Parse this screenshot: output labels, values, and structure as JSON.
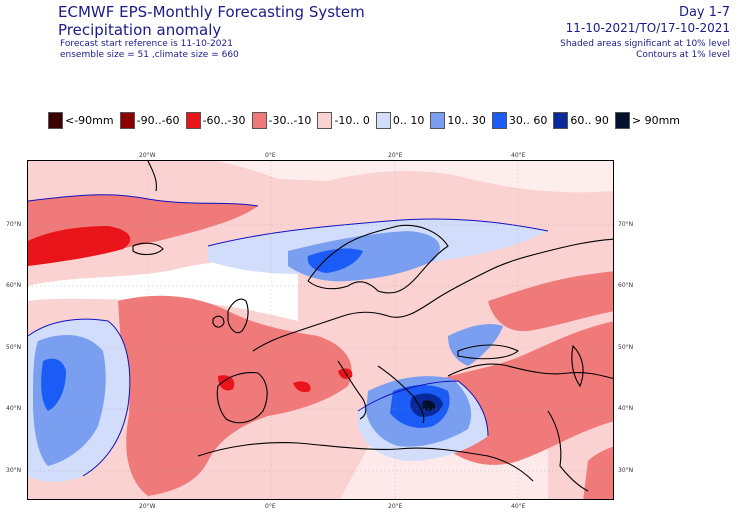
{
  "header": {
    "system": "ECMWF EPS-Monthly Forecasting System",
    "product": "Precipitation anomaly",
    "start_ref": "Forecast start reference is 11-10-2021",
    "ensemble": "ensemble size = 51  ,climate size = 660",
    "day_range": "Day 1-7",
    "date_range": "11-10-2021/TO/17-10-2021",
    "shaded_note": "Shaded areas significant at 10% level",
    "contour_note": "Contours at 1% level"
  },
  "legend": [
    {
      "label": "<-90mm",
      "color": "#3d0000"
    },
    {
      "label": "-90..-60",
      "color": "#8b0000"
    },
    {
      "label": "-60..-30",
      "color": "#e8141a"
    },
    {
      "label": "-30..-10",
      "color": "#f07a7a"
    },
    {
      "label": "-10..  0",
      "color": "#fbd2d2"
    },
    {
      "label": "0.. 10",
      "color": "#d2ddfb"
    },
    {
      "label": "10.. 30",
      "color": "#7b9ff0"
    },
    {
      "label": "30.. 60",
      "color": "#1a5cf5"
    },
    {
      "label": "60.. 90",
      "color": "#0a2a9b"
    },
    {
      "label": "> 90mm",
      "color": "#03112e"
    }
  ],
  "map": {
    "lon_labels": [
      "20°W",
      "0°E",
      "20°E",
      "40°E"
    ],
    "lat_labels": [
      "70°N",
      "60°N",
      "50°N",
      "40°N",
      "30°N"
    ]
  },
  "colors": {
    "title": "#1b1b8a",
    "coast": "#000000",
    "contour": "#1010c0"
  }
}
